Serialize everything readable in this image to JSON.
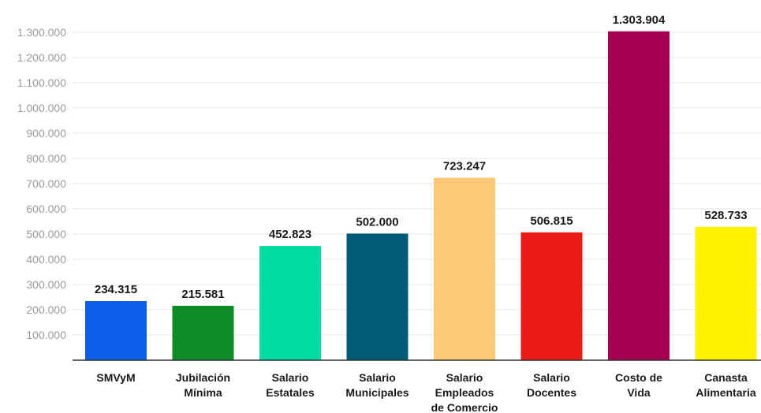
{
  "chart_data": {
    "type": "bar",
    "categories": [
      [
        "SMVyM"
      ],
      [
        "Jubilación",
        "Mínima"
      ],
      [
        "Salario",
        "Estatales"
      ],
      [
        "Salario",
        "Municipales"
      ],
      [
        "Salario",
        "Empleados",
        "de Comercio"
      ],
      [
        "Salario",
        "Docentes"
      ],
      [
        "Costo de",
        "Vida"
      ],
      [
        "Canasta",
        "Alimentaria"
      ]
    ],
    "values": [
      234315,
      215581,
      452823,
      502000,
      723247,
      506815,
      1303904,
      528733
    ],
    "value_labels": [
      "234.315",
      "215.581",
      "452.823",
      "502.000",
      "723.247",
      "506.815",
      "1.303.904",
      "528.733"
    ],
    "colors": [
      "#0a5ee8",
      "#0e8c26",
      "#00dba3",
      "#005b77",
      "#fcc977",
      "#ea1b15",
      "#a50052",
      "#fff200"
    ],
    "yticks": [
      100000,
      200000,
      300000,
      400000,
      500000,
      600000,
      700000,
      800000,
      900000,
      1000000,
      1100000,
      1200000,
      1300000
    ],
    "ytick_labels": [
      "100.000",
      "200.000",
      "300.000",
      "400.000",
      "500.000",
      "600.000",
      "700.000",
      "800.000",
      "900.000",
      "1.000.000",
      "1.100.000",
      "1.200.000",
      "1.300.000"
    ],
    "ylim": [
      0,
      1300000
    ],
    "grid": true,
    "title": "",
    "xlabel": "",
    "ylabel": ""
  }
}
